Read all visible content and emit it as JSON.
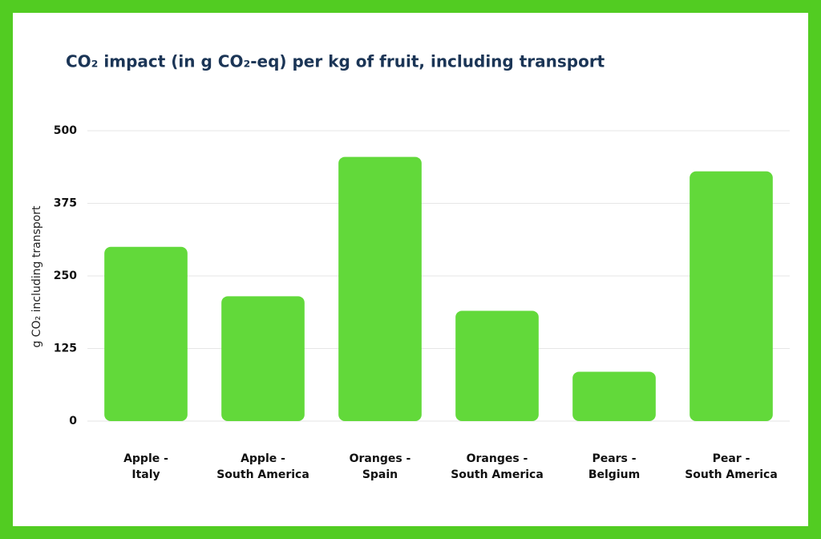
{
  "chart_data": {
    "type": "bar",
    "title": "CO₂ impact (in g CO₂-eq) per kg of fruit, including transport",
    "y_label": "g CO₂ including transport",
    "categories": [
      [
        "Apple -",
        "Italy"
      ],
      [
        "Apple -",
        "South America"
      ],
      [
        "Oranges -",
        "Spain"
      ],
      [
        "Oranges -",
        "South America"
      ],
      [
        "Pears -",
        "Belgium"
      ],
      [
        "Pear -",
        "South America"
      ]
    ],
    "values": [
      300,
      215,
      455,
      190,
      85,
      430
    ],
    "color": "#62d93a",
    "ylim": [
      0,
      500
    ],
    "yticks": [
      0,
      125,
      250,
      375,
      500
    ],
    "grid": true
  }
}
